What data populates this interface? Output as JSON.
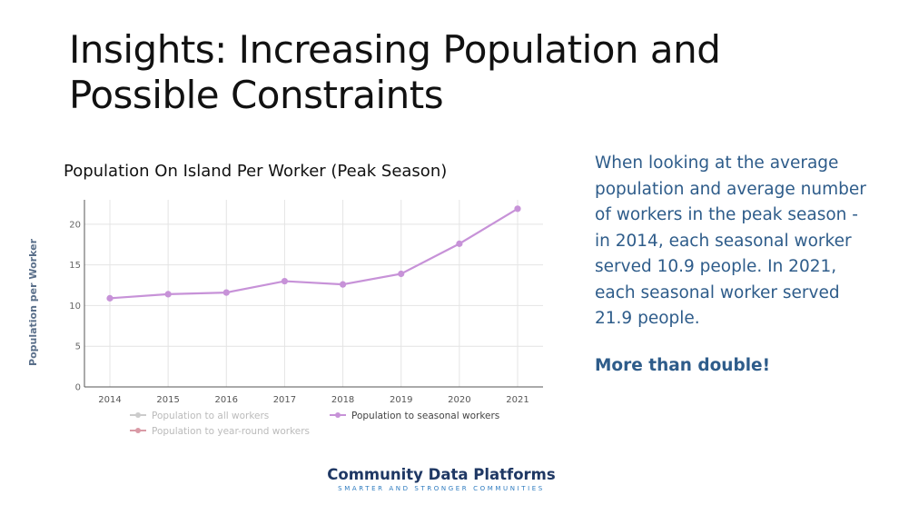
{
  "slide": {
    "title": "Insights: Increasing Population and Possible Constraints"
  },
  "chart_data": {
    "type": "line",
    "title": "Population On Island Per Worker (Peak Season)",
    "xlabel": "",
    "ylabel": "Population per Worker",
    "categories": [
      "2014",
      "2015",
      "2016",
      "2017",
      "2018",
      "2019",
      "2020",
      "2021"
    ],
    "ylim": [
      0,
      23
    ],
    "yticks": [
      0,
      5,
      10,
      15,
      20
    ],
    "grid": true,
    "legend_position": "bottom",
    "legend": [
      {
        "label": "Population to all workers",
        "color": "#cccccc",
        "active": false
      },
      {
        "label": "Population to seasonal workers",
        "color": "#c792d8",
        "active": true
      },
      {
        "label": "Population to year-round workers",
        "color": "#d99aa6",
        "active": false
      }
    ],
    "series": [
      {
        "name": "Population to seasonal workers",
        "color": "#c792d8",
        "values": [
          10.9,
          11.4,
          11.6,
          13.0,
          12.6,
          13.9,
          17.6,
          21.9
        ]
      }
    ]
  },
  "insight": {
    "body": "When looking at the average population and average number of workers  in the peak season - in 2014, each seasonal worker served 10.9 people. In 2021, each seasonal worker served 21.9 people.",
    "callout": "More than double!"
  },
  "footer": {
    "brand": "Community Data Platforms",
    "tagline": "SMARTER AND STRONGER COMMUNITIES"
  },
  "colors": {
    "title": "#111111",
    "insight_text": "#2e5c8a",
    "brand": "#1f3864",
    "tagline": "#2e7bbf"
  }
}
